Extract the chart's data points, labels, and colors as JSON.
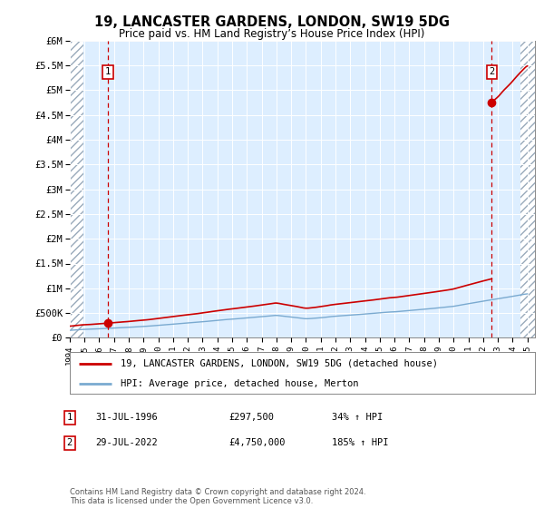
{
  "title": "19, LANCASTER GARDENS, LONDON, SW19 5DG",
  "subtitle": "Price paid vs. HM Land Registry’s House Price Index (HPI)",
  "legend_line1": "19, LANCASTER GARDENS, LONDON, SW19 5DG (detached house)",
  "legend_line2": "HPI: Average price, detached house, Merton",
  "sale1_date": 1996.58,
  "sale1_price": 297500,
  "sale1_label": "1",
  "sale2_date": 2022.58,
  "sale2_price": 4750000,
  "sale2_label": "2",
  "copyright": "Contains HM Land Registry data © Crown copyright and database right 2024.\nThis data is licensed under the Open Government Licence v3.0.",
  "xmin": 1994,
  "xmax": 2025.5,
  "ymin": 0,
  "ymax": 6000000,
  "hpi_color": "#7aaad0",
  "property_color": "#cc0000",
  "plot_bg": "#ddeeff"
}
